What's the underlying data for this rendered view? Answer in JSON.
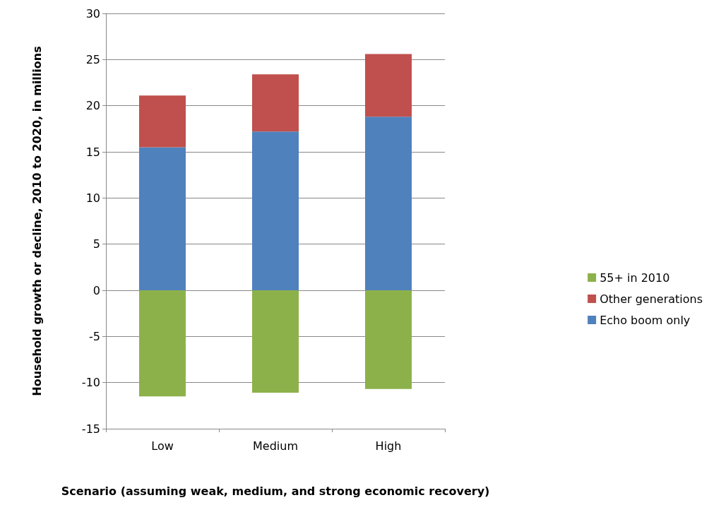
{
  "chart_data": {
    "type": "bar",
    "stacked": true,
    "xlabel": "Scenario (assuming weak, medium, and strong economic recovery)",
    "ylabel": "Household growth or decline, 2010 to 2020, in millions",
    "categories": [
      "Low",
      "Medium",
      "High"
    ],
    "series": [
      {
        "name": "Echo boom only",
        "color": "#4f81bd",
        "values": [
          15.5,
          17.2,
          18.8
        ]
      },
      {
        "name": "Other generations",
        "color": "#c0504d",
        "values": [
          5.6,
          6.2,
          6.8
        ]
      },
      {
        "name": "55+ in 2010",
        "color": "#8db14a",
        "values": [
          -11.5,
          -11.1,
          -10.7
        ]
      }
    ],
    "ylim": [
      -15,
      30
    ],
    "yticks": [
      -15,
      -10,
      -5,
      0,
      5,
      10,
      15,
      20,
      25,
      30
    ],
    "grid": "y",
    "legend": "right"
  }
}
